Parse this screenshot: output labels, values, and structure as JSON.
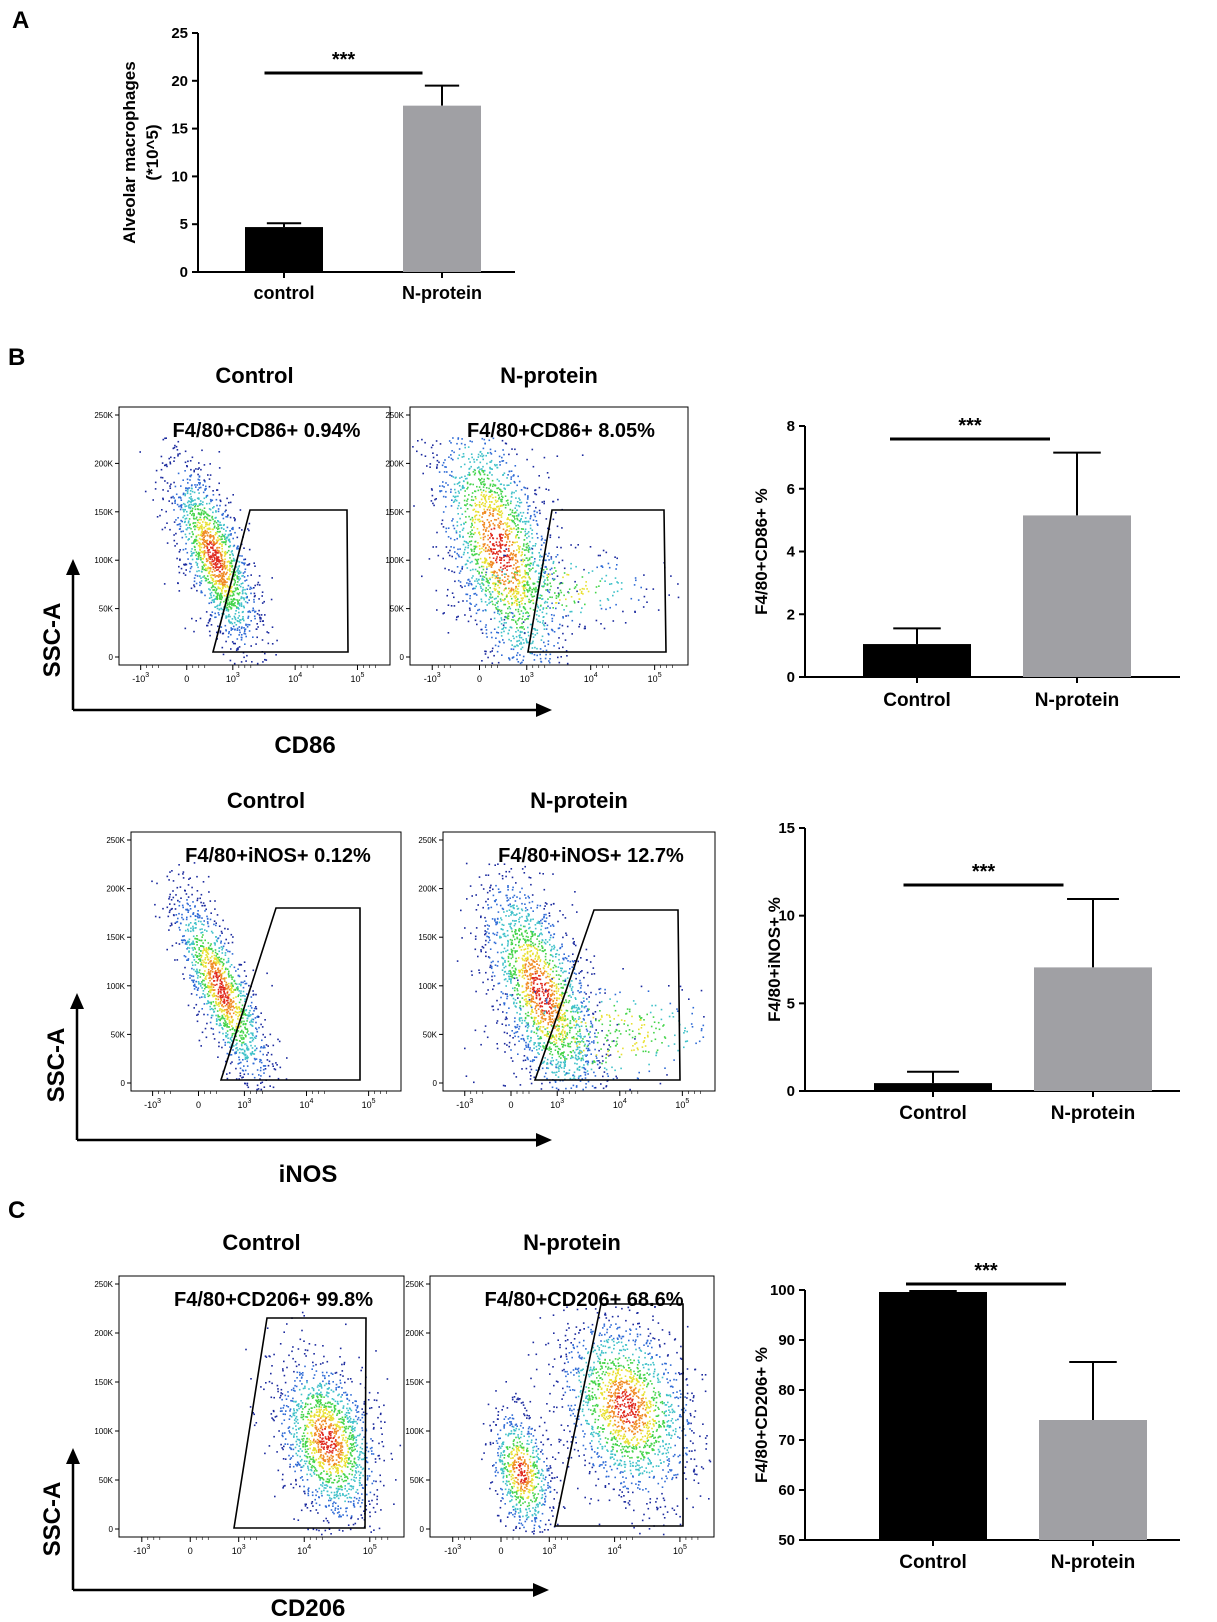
{
  "panels": {
    "A": {
      "letter": "A"
    },
    "B": {
      "letter": "B"
    },
    "C": {
      "letter": "C"
    }
  },
  "chart_data": [
    {
      "id": "A-bar",
      "type": "bar",
      "categories": [
        "control",
        "N-protein"
      ],
      "values": [
        4.7,
        17.4
      ],
      "errors": [
        0.4,
        2.1
      ],
      "colors": [
        "#000000",
        "#a0a0a4"
      ],
      "title": "",
      "xlabel": "",
      "ylabel_lines": [
        "Alveolar macrophages",
        "(*10^5)"
      ],
      "ylim": [
        0,
        25
      ],
      "yticks": [
        0,
        5,
        10,
        15,
        20,
        25
      ],
      "significance": "***"
    },
    {
      "id": "B-cd86-bar",
      "type": "bar",
      "categories": [
        "Control",
        "N-protein"
      ],
      "values": [
        1.05,
        5.15
      ],
      "errors": [
        0.5,
        2.0
      ],
      "colors": [
        "#000000",
        "#a0a0a4"
      ],
      "ylabel_lines": [
        "F4/80+CD86+ %"
      ],
      "ylim": [
        0,
        8
      ],
      "yticks": [
        0,
        2,
        4,
        6,
        8
      ],
      "significance": "***"
    },
    {
      "id": "B-inos-bar",
      "type": "bar",
      "categories": [
        "Control",
        "N-protein"
      ],
      "values": [
        0.45,
        7.05
      ],
      "errors": [
        0.65,
        3.9
      ],
      "colors": [
        "#000000",
        "#a0a0a4"
      ],
      "ylabel_lines": [
        "F4/80+iNOS+ %"
      ],
      "ylim": [
        0,
        15
      ],
      "yticks": [
        0,
        5,
        10,
        15
      ],
      "significance": "***"
    },
    {
      "id": "C-cd206-bar",
      "type": "bar",
      "categories": [
        "Control",
        "N-protein"
      ],
      "values": [
        99.6,
        74.0
      ],
      "errors": [
        0.2,
        11.6
      ],
      "colors": [
        "#000000",
        "#a0a0a4"
      ],
      "ylabel_lines": [
        "F4/80+CD206+ %"
      ],
      "ylim": [
        50,
        100
      ],
      "yticks": [
        50,
        60,
        70,
        80,
        90,
        100
      ],
      "significance": "***"
    }
  ],
  "flow_rows": [
    {
      "id": "cd86",
      "y_axis_label": "SSC-A",
      "x_axis_label": "CD86",
      "plots": [
        {
          "title": "Control",
          "gate_label": "F4/80+CD86+ 0.94%"
        },
        {
          "title": "N-protein",
          "gate_label": "F4/80+CD86+ 8.05%"
        }
      ]
    },
    {
      "id": "inos",
      "y_axis_label": "SSC-A",
      "x_axis_label": "iNOS",
      "plots": [
        {
          "title": "Control",
          "gate_label": "F4/80+iNOS+ 0.12%"
        },
        {
          "title": "N-protein",
          "gate_label": "F4/80+iNOS+ 12.7%"
        }
      ]
    },
    {
      "id": "cd206",
      "y_axis_label": "SSC-A",
      "x_axis_label": "CD206",
      "plots": [
        {
          "title": "Control",
          "gate_label": "F4/80+CD206+ 99.8%"
        },
        {
          "title": "N-protein",
          "gate_label": "F4/80+CD206+ 68.6%"
        }
      ]
    }
  ],
  "flow_axes": {
    "y_ticks": [
      "250K",
      "200K",
      "150K",
      "100K",
      "50K",
      "0"
    ],
    "x_ticks": [
      {
        "base": "-10",
        "exp": "3"
      },
      {
        "base": "0",
        "exp": ""
      },
      {
        "base": "10",
        "exp": "3"
      },
      {
        "base": "10",
        "exp": "4"
      },
      {
        "base": "10",
        "exp": "5"
      }
    ]
  },
  "density_colors": [
    "#1b2a9e",
    "#2f6bd6",
    "#3fc1c9",
    "#44d44a",
    "#e8e030",
    "#f08a24",
    "#e02a1e"
  ]
}
